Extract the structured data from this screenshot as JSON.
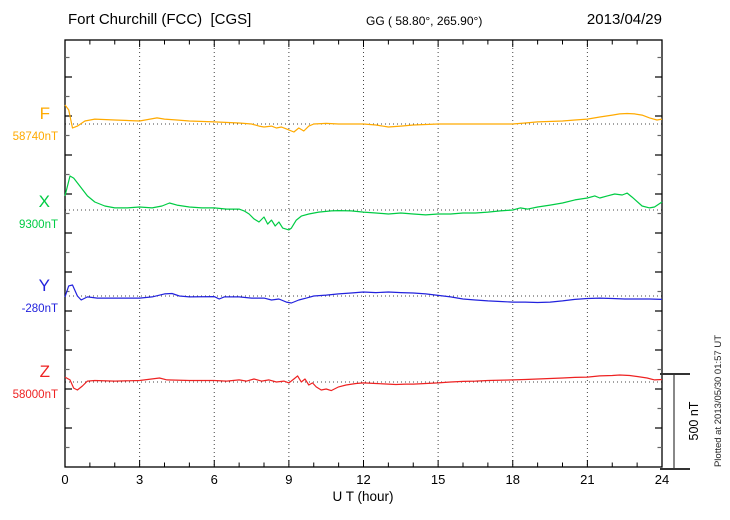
{
  "header": {
    "station": "Fort Churchill (FCC)  [CGS]",
    "coords": "GG ( 58.80°, 265.90°)",
    "date": "2013/04/29"
  },
  "axis": {
    "xlabel": "U T (hour)",
    "hour_tick_labels": [
      "0",
      "3",
      "6",
      "9",
      "12",
      "15",
      "18",
      "21",
      "24"
    ],
    "hour_tick_values": [
      0,
      3,
      6,
      9,
      12,
      15,
      18,
      21,
      24
    ]
  },
  "scalebar": {
    "label": "500 nT",
    "nT": 500
  },
  "note": "Plotted at 2013/05/30 01:57 UT",
  "chart_data": {
    "type": "line",
    "title": "Fort Churchill (FCC) magnetogram, CGS, 2013/04/29",
    "xlabel": "U T (hour)",
    "xlim": [
      0,
      24
    ],
    "grid": "dotted vertical gridlines every 3 h; dotted horizontal baseline per channel",
    "legend_position": "left margin (channel name + baseline value)",
    "units": "points are [UT hour, offset in nT from channel baseline value]",
    "scalebar_nT": 500,
    "series": [
      {
        "name": "F",
        "value_label": "58740nT",
        "baseline_nT": 58740,
        "color": "#ffaa00",
        "points": [
          [
            0,
            100
          ],
          [
            0.15,
            74
          ],
          [
            0.3,
            -21
          ],
          [
            0.5,
            -11
          ],
          [
            0.8,
            16
          ],
          [
            1.2,
            26
          ],
          [
            2,
            21
          ],
          [
            3,
            16
          ],
          [
            3.7,
            32
          ],
          [
            4,
            26
          ],
          [
            4.5,
            21
          ],
          [
            5,
            16
          ],
          [
            6,
            11
          ],
          [
            7,
            5
          ],
          [
            7.5,
            0
          ],
          [
            7.8,
            -11
          ],
          [
            8,
            -16
          ],
          [
            8.3,
            -11
          ],
          [
            8.5,
            -21
          ],
          [
            8.7,
            -16
          ],
          [
            8.9,
            -26
          ],
          [
            9.2,
            -42
          ],
          [
            9.4,
            -21
          ],
          [
            9.6,
            -37
          ],
          [
            9.8,
            -11
          ],
          [
            10,
            0
          ],
          [
            10.5,
            3
          ],
          [
            11,
            0
          ],
          [
            12,
            0
          ],
          [
            12.5,
            -5
          ],
          [
            13,
            -16
          ],
          [
            13.5,
            -11
          ],
          [
            14,
            -5
          ],
          [
            15,
            0
          ],
          [
            16,
            0
          ],
          [
            17,
            0
          ],
          [
            18,
            0
          ],
          [
            18.5,
            5
          ],
          [
            19,
            11
          ],
          [
            20,
            16
          ],
          [
            20.5,
            21
          ],
          [
            21,
            26
          ],
          [
            21.5,
            37
          ],
          [
            22,
            47
          ],
          [
            22.3,
            53
          ],
          [
            22.6,
            55
          ],
          [
            22.9,
            53
          ],
          [
            23.2,
            47
          ],
          [
            23.5,
            32
          ],
          [
            23.8,
            21
          ],
          [
            24,
            26
          ]
        ]
      },
      {
        "name": "X",
        "value_label": "9300nT",
        "baseline_nT": 9300,
        "color": "#00cc44",
        "points": [
          [
            0,
            74
          ],
          [
            0.2,
            179
          ],
          [
            0.35,
            168
          ],
          [
            0.6,
            126
          ],
          [
            0.9,
            74
          ],
          [
            1.2,
            42
          ],
          [
            1.6,
            21
          ],
          [
            2,
            11
          ],
          [
            2.5,
            11
          ],
          [
            3,
            16
          ],
          [
            3.5,
            11
          ],
          [
            3.9,
            21
          ],
          [
            4.2,
            37
          ],
          [
            4.5,
            26
          ],
          [
            5,
            16
          ],
          [
            5.5,
            11
          ],
          [
            6,
            11
          ],
          [
            6.5,
            5
          ],
          [
            7,
            5
          ],
          [
            7.2,
            -5
          ],
          [
            7.4,
            -21
          ],
          [
            7.6,
            -47
          ],
          [
            7.8,
            -63
          ],
          [
            8,
            -37
          ],
          [
            8.15,
            -74
          ],
          [
            8.3,
            -53
          ],
          [
            8.45,
            -84
          ],
          [
            8.6,
            -63
          ],
          [
            8.75,
            -95
          ],
          [
            9,
            -105
          ],
          [
            9.1,
            -95
          ],
          [
            9.3,
            -53
          ],
          [
            9.5,
            -32
          ],
          [
            9.8,
            -21
          ],
          [
            10.2,
            -11
          ],
          [
            10.7,
            -5
          ],
          [
            11,
            -3
          ],
          [
            11.5,
            -5
          ],
          [
            12,
            -11
          ],
          [
            12.5,
            -16
          ],
          [
            13,
            -21
          ],
          [
            13.5,
            -16
          ],
          [
            14,
            -21
          ],
          [
            14.5,
            -26
          ],
          [
            15,
            -21
          ],
          [
            15.5,
            -21
          ],
          [
            16,
            -16
          ],
          [
            16.5,
            -16
          ],
          [
            17,
            -11
          ],
          [
            17.5,
            -5
          ],
          [
            18,
            0
          ],
          [
            18.3,
            11
          ],
          [
            18.6,
            5
          ],
          [
            19,
            16
          ],
          [
            19.5,
            26
          ],
          [
            20,
            37
          ],
          [
            20.5,
            53
          ],
          [
            21,
            63
          ],
          [
            21.3,
            74
          ],
          [
            21.5,
            63
          ],
          [
            21.8,
            74
          ],
          [
            22.1,
            84
          ],
          [
            22.4,
            79
          ],
          [
            22.6,
            89
          ],
          [
            22.8,
            68
          ],
          [
            23.2,
            21
          ],
          [
            23.5,
            11
          ],
          [
            23.7,
            16
          ],
          [
            24,
            42
          ]
        ]
      },
      {
        "name": "Y",
        "value_label": "-280nT",
        "baseline_nT": -280,
        "color": "#2222dd",
        "points": [
          [
            0,
            -5
          ],
          [
            0.15,
            53
          ],
          [
            0.3,
            58
          ],
          [
            0.5,
            0
          ],
          [
            0.65,
            -21
          ],
          [
            0.9,
            -5
          ],
          [
            1.3,
            -11
          ],
          [
            2,
            -11
          ],
          [
            3,
            -11
          ],
          [
            3.5,
            -5
          ],
          [
            4,
            11
          ],
          [
            4.3,
            13
          ],
          [
            4.6,
            0
          ],
          [
            5,
            -5
          ],
          [
            6,
            -3
          ],
          [
            6.2,
            -16
          ],
          [
            6.4,
            -5
          ],
          [
            7,
            -5
          ],
          [
            7.5,
            -11
          ],
          [
            8,
            -11
          ],
          [
            8.3,
            -21
          ],
          [
            8.6,
            -16
          ],
          [
            8.9,
            -32
          ],
          [
            9.1,
            -37
          ],
          [
            9.4,
            -21
          ],
          [
            9.7,
            -11
          ],
          [
            10,
            0
          ],
          [
            10.5,
            5
          ],
          [
            11,
            11
          ],
          [
            11.5,
            16
          ],
          [
            12,
            21
          ],
          [
            12.5,
            18
          ],
          [
            13,
            21
          ],
          [
            13.5,
            18
          ],
          [
            14,
            16
          ],
          [
            14.5,
            11
          ],
          [
            15,
            3
          ],
          [
            15.5,
            -5
          ],
          [
            16,
            -16
          ],
          [
            16.5,
            -21
          ],
          [
            17,
            -26
          ],
          [
            17.5,
            -29
          ],
          [
            18,
            -32
          ],
          [
            18.5,
            -32
          ],
          [
            19,
            -34
          ],
          [
            19.5,
            -32
          ],
          [
            20,
            -26
          ],
          [
            20.5,
            -18
          ],
          [
            21,
            -13
          ],
          [
            21.5,
            -11
          ],
          [
            22,
            -13
          ],
          [
            22.5,
            -16
          ],
          [
            23,
            -16
          ],
          [
            23.5,
            -16
          ],
          [
            24,
            -18
          ]
        ]
      },
      {
        "name": "Z",
        "value_label": "58000nT",
        "baseline_nT": 58000,
        "color": "#ee2222",
        "points": [
          [
            0,
            26
          ],
          [
            0.2,
            11
          ],
          [
            0.35,
            -32
          ],
          [
            0.5,
            -42
          ],
          [
            0.7,
            -21
          ],
          [
            0.9,
            5
          ],
          [
            1.2,
            8
          ],
          [
            2,
            5
          ],
          [
            3,
            8
          ],
          [
            3.8,
            21
          ],
          [
            4.1,
            11
          ],
          [
            5,
            8
          ],
          [
            6,
            8
          ],
          [
            6.5,
            5
          ],
          [
            7,
            11
          ],
          [
            7.3,
            5
          ],
          [
            7.6,
            16
          ],
          [
            7.9,
            5
          ],
          [
            8.2,
            11
          ],
          [
            8.5,
            0
          ],
          [
            8.8,
            5
          ],
          [
            9,
            -5
          ],
          [
            9.2,
            16
          ],
          [
            9.35,
            32
          ],
          [
            9.5,
            0
          ],
          [
            9.65,
            16
          ],
          [
            9.8,
            -16
          ],
          [
            9.95,
            -5
          ],
          [
            10.1,
            -26
          ],
          [
            10.3,
            -42
          ],
          [
            10.5,
            -37
          ],
          [
            10.7,
            -45
          ],
          [
            11,
            -26
          ],
          [
            11.3,
            -16
          ],
          [
            11.7,
            -8
          ],
          [
            12,
            -5
          ],
          [
            12.5,
            -8
          ],
          [
            13,
            -11
          ],
          [
            13.3,
            -13
          ],
          [
            13.7,
            -11
          ],
          [
            14,
            -11
          ],
          [
            15,
            -5
          ],
          [
            15.5,
            0
          ],
          [
            16,
            3
          ],
          [
            16.5,
            5
          ],
          [
            17,
            8
          ],
          [
            18,
            11
          ],
          [
            18.5,
            13
          ],
          [
            19,
            16
          ],
          [
            20,
            21
          ],
          [
            20.5,
            24
          ],
          [
            21,
            26
          ],
          [
            21.5,
            32
          ],
          [
            22,
            34
          ],
          [
            22.3,
            37
          ],
          [
            22.7,
            34
          ],
          [
            23,
            29
          ],
          [
            23.4,
            21
          ],
          [
            23.7,
            11
          ],
          [
            24,
            13
          ]
        ]
      }
    ]
  }
}
